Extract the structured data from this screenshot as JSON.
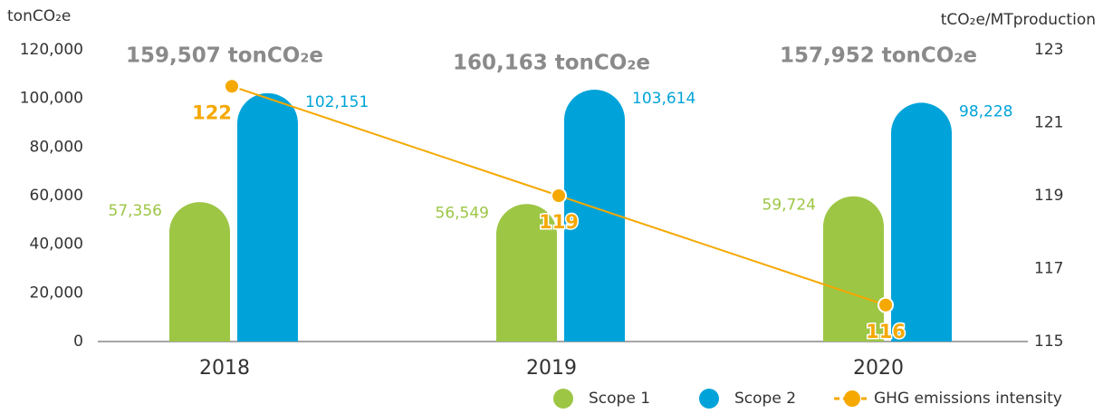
{
  "chart_data": {
    "type": "bar",
    "categories": [
      "2018",
      "2019",
      "2020"
    ],
    "series": [
      {
        "name": "Scope 1",
        "color": "#9dc645",
        "values": [
          57356,
          56549,
          59724
        ],
        "value_labels": [
          "57,356",
          "56,549",
          "59,724"
        ]
      },
      {
        "name": "Scope 2",
        "color": "#00a3d9",
        "values": [
          102151,
          103614,
          98228
        ],
        "value_labels": [
          "102,151",
          "103,614",
          "98,228"
        ]
      },
      {
        "name": "GHG emissions intensity",
        "color": "#f5a800",
        "type": "line",
        "axis": "y2",
        "values": [
          122,
          119,
          116
        ]
      }
    ],
    "annotations": [
      "159,507 tonCO₂e",
      "160,163 tonCO₂e",
      "157,952 tonCO₂e"
    ],
    "y_label": "tonCO₂e",
    "y2_label": "tCO₂e/MTproduction",
    "ylim": [
      0,
      120000
    ],
    "yticks": [
      0,
      {
        "value": 20000,
        "label": "20,000"
      },
      {
        "value": 40000,
        "label": "40,000"
      },
      {
        "value": 60000,
        "label": "60,000"
      },
      {
        "value": 80000,
        "label": "80,000"
      },
      {
        "value": 100000,
        "label": "100,000"
      },
      {
        "value": 120000,
        "label": "120,000"
      }
    ],
    "y2lim": [
      115,
      123
    ],
    "y2ticks": [
      115,
      117,
      119,
      121,
      123
    ],
    "grid": false,
    "legend": "bottom-right"
  }
}
